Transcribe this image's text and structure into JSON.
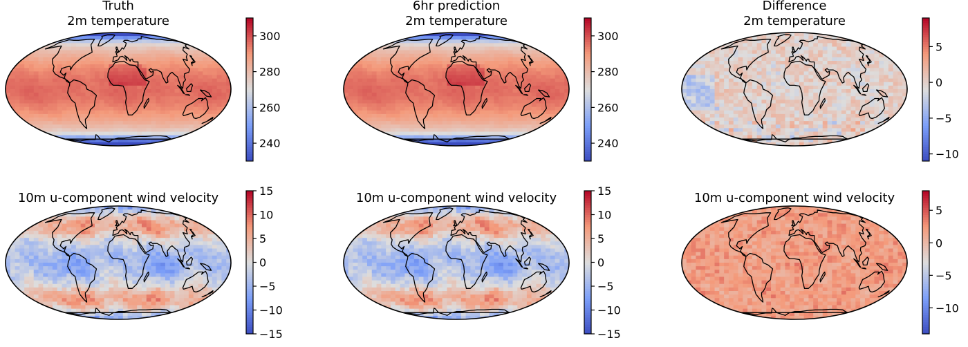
{
  "chart_data": [
    {
      "type": "heatmap",
      "title": "Truth\n2m temperature",
      "field": "2m temperature",
      "colormap": "coolwarm",
      "colorbar": {
        "vmin": 230,
        "vmax": 310,
        "ticks": [
          240,
          260,
          280,
          300
        ]
      },
      "source": "truth"
    },
    {
      "type": "heatmap",
      "title": "6hr prediction\n2m temperature",
      "field": "2m temperature",
      "colormap": "coolwarm",
      "colorbar": {
        "vmin": 230,
        "vmax": 310,
        "ticks": [
          240,
          260,
          280,
          300
        ]
      },
      "source": "prediction"
    },
    {
      "type": "heatmap",
      "title": "Difference\n2m temperature",
      "field": "2m temperature",
      "colormap": "coolwarm",
      "colorbar": {
        "vmin": -11,
        "vmax": 9,
        "ticks": [
          -10,
          -5,
          0,
          5
        ]
      },
      "source": "difference"
    },
    {
      "type": "heatmap",
      "title": "10m u-component wind velocity",
      "field": "10m u-component wind velocity",
      "colormap": "coolwarm",
      "colorbar": {
        "vmin": -15,
        "vmax": 15,
        "ticks": [
          -15,
          -10,
          -5,
          0,
          5,
          10,
          15
        ]
      },
      "source": "truth"
    },
    {
      "type": "heatmap",
      "title": "10m u-component wind velocity",
      "field": "10m u-component wind velocity",
      "colormap": "coolwarm",
      "colorbar": {
        "vmin": -15,
        "vmax": 15,
        "ticks": [
          -15,
          -10,
          -5,
          0,
          5,
          10,
          15
        ]
      },
      "source": "prediction"
    },
    {
      "type": "heatmap",
      "title": "10m u-component wind velocity",
      "field": "10m u-component wind velocity",
      "colormap": "coolwarm",
      "colorbar": {
        "vmin": -14,
        "vmax": 8,
        "ticks": [
          -10,
          -5,
          0,
          5
        ]
      },
      "source": "difference"
    }
  ]
}
